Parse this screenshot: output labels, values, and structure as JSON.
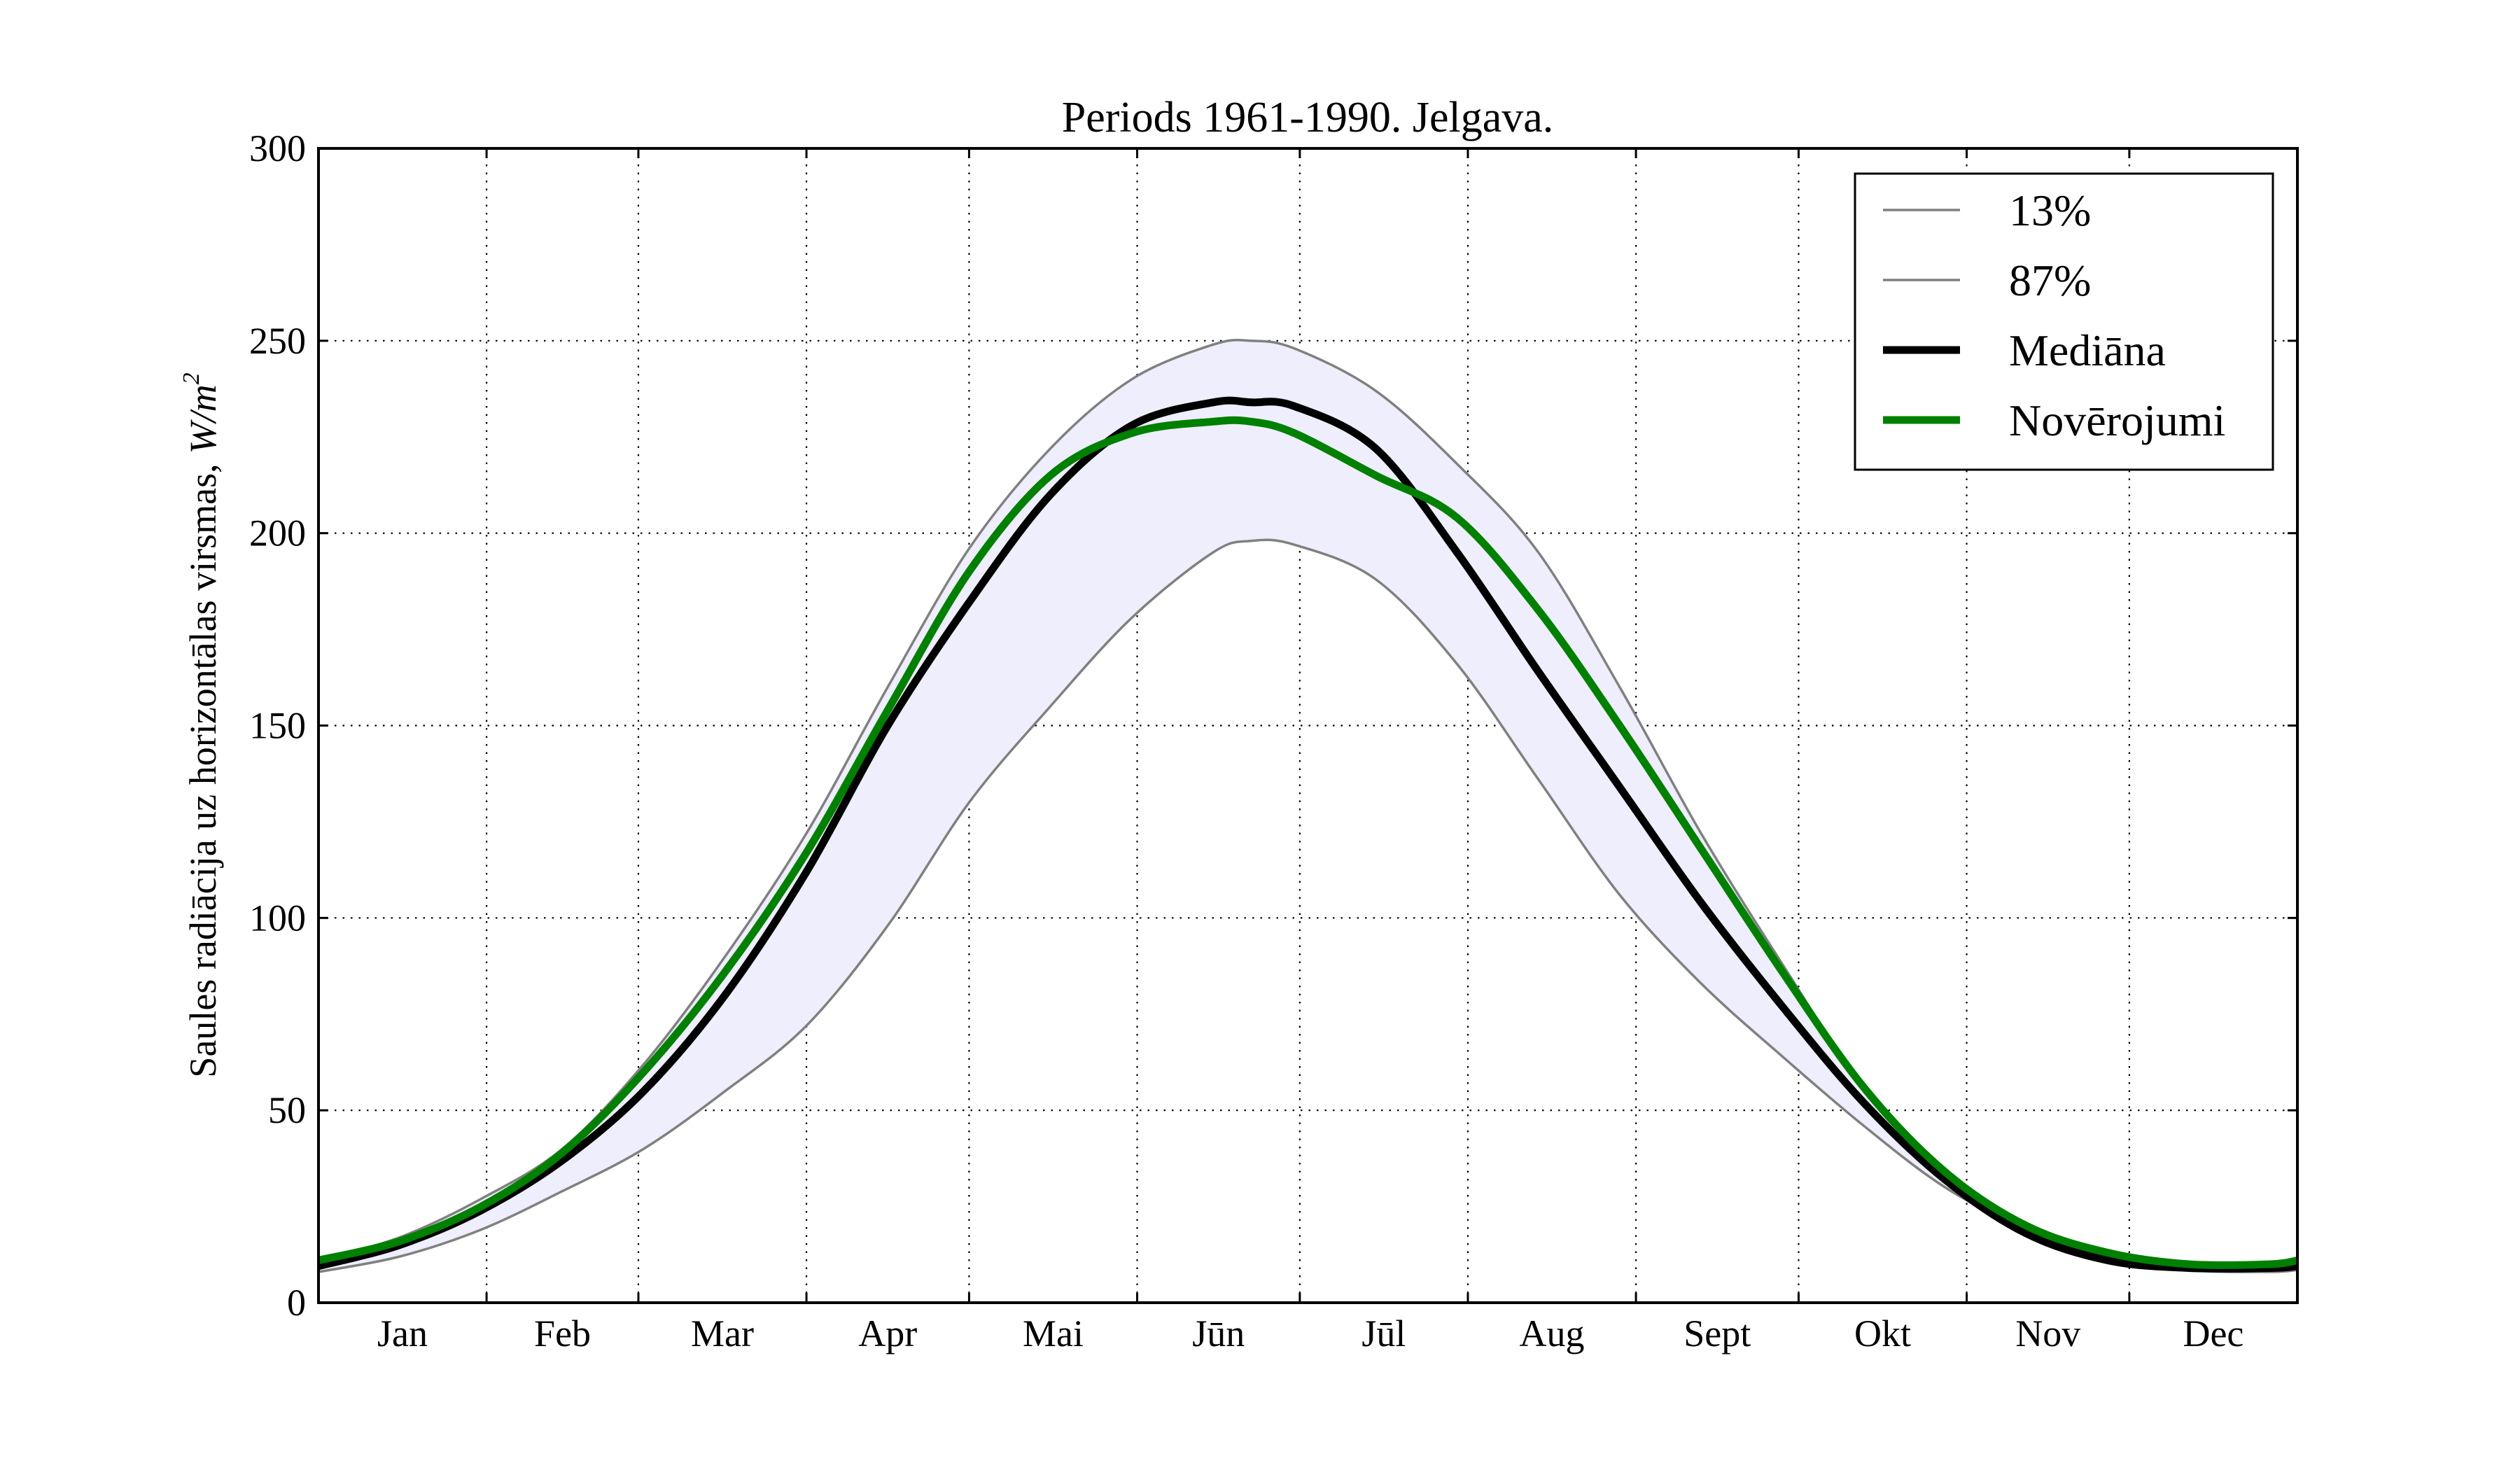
{
  "chart_data": {
    "type": "line",
    "title": "Periods 1961-1990. Jelgava.",
    "ylabel": "Saules radiācija uz horizontālas virsmas, W/m²",
    "ylabel_text": "Saules radiācija uz horizontālas virsmas,",
    "ylabel_unit": "W/m",
    "ylabel_sup": "2",
    "xlabel": "",
    "xlim": [
      0,
      365
    ],
    "ylim": [
      0,
      300
    ],
    "yticks": [
      "0",
      "50",
      "100",
      "150",
      "200",
      "250",
      "300"
    ],
    "month_labels": [
      "Jan",
      "Feb",
      "Mar",
      "Apr",
      "Mai",
      "Jūn",
      "Jūl",
      "Aug",
      "Sept",
      "Okt",
      "Nov",
      "Dec"
    ],
    "grid": true,
    "legend_position": "top-right",
    "band": {
      "between": [
        "13%",
        "87%"
      ],
      "color": "#eeeefc"
    },
    "series": [
      {
        "name": "13%",
        "color": "#808080",
        "style": "thin",
        "x": [
          0,
          15,
          30,
          45,
          60,
          75,
          90,
          105,
          120,
          135,
          150,
          165,
          172,
          180,
          195,
          210,
          225,
          240,
          255,
          270,
          285,
          300,
          315,
          330,
          345,
          360,
          365
        ],
        "y": [
          8,
          12,
          19,
          29,
          40,
          55,
          72,
          98,
          130,
          155,
          178,
          195,
          198,
          197,
          188,
          166,
          136,
          106,
          83,
          64,
          46,
          30,
          19,
          12,
          8.5,
          8,
          8.5
        ]
      },
      {
        "name": "87%",
        "color": "#808080",
        "style": "thin",
        "x": [
          0,
          15,
          30,
          45,
          60,
          75,
          90,
          105,
          120,
          135,
          150,
          165,
          172,
          180,
          195,
          210,
          225,
          240,
          255,
          270,
          285,
          300,
          315,
          330,
          345,
          360,
          365
        ],
        "y": [
          11,
          17,
          27,
          40,
          62,
          90,
          122,
          160,
          196,
          222,
          240,
          249,
          250,
          248,
          237,
          218,
          195,
          160,
          122,
          88,
          56,
          33,
          20,
          13,
          10,
          9.5,
          10
        ]
      },
      {
        "name": "Mediāna",
        "color": "#000000",
        "style": "thick",
        "x": [
          0,
          15,
          30,
          45,
          60,
          75,
          90,
          105,
          120,
          135,
          150,
          165,
          172,
          180,
          195,
          210,
          225,
          240,
          255,
          270,
          285,
          300,
          315,
          330,
          345,
          360,
          365
        ],
        "y": [
          9.5,
          15,
          24,
          37,
          55,
          80,
          112,
          150,
          182,
          210,
          228,
          234,
          234,
          233,
          222,
          195,
          164,
          134,
          104,
          77,
          52,
          32,
          18,
          11,
          9,
          9,
          9.5
        ]
      },
      {
        "name": "Novērojumi",
        "color": "#008000",
        "style": "thick",
        "x": [
          0,
          15,
          30,
          45,
          60,
          75,
          90,
          105,
          120,
          135,
          150,
          165,
          172,
          180,
          195,
          210,
          225,
          240,
          255,
          270,
          285,
          300,
          315,
          330,
          345,
          360,
          365
        ],
        "y": [
          11,
          16,
          25,
          39,
          60,
          86,
          117,
          154,
          190,
          215,
          226,
          229,
          229,
          226,
          215,
          204,
          180,
          150,
          118,
          86,
          56,
          34,
          20,
          13,
          10,
          10,
          11
        ]
      }
    ]
  }
}
